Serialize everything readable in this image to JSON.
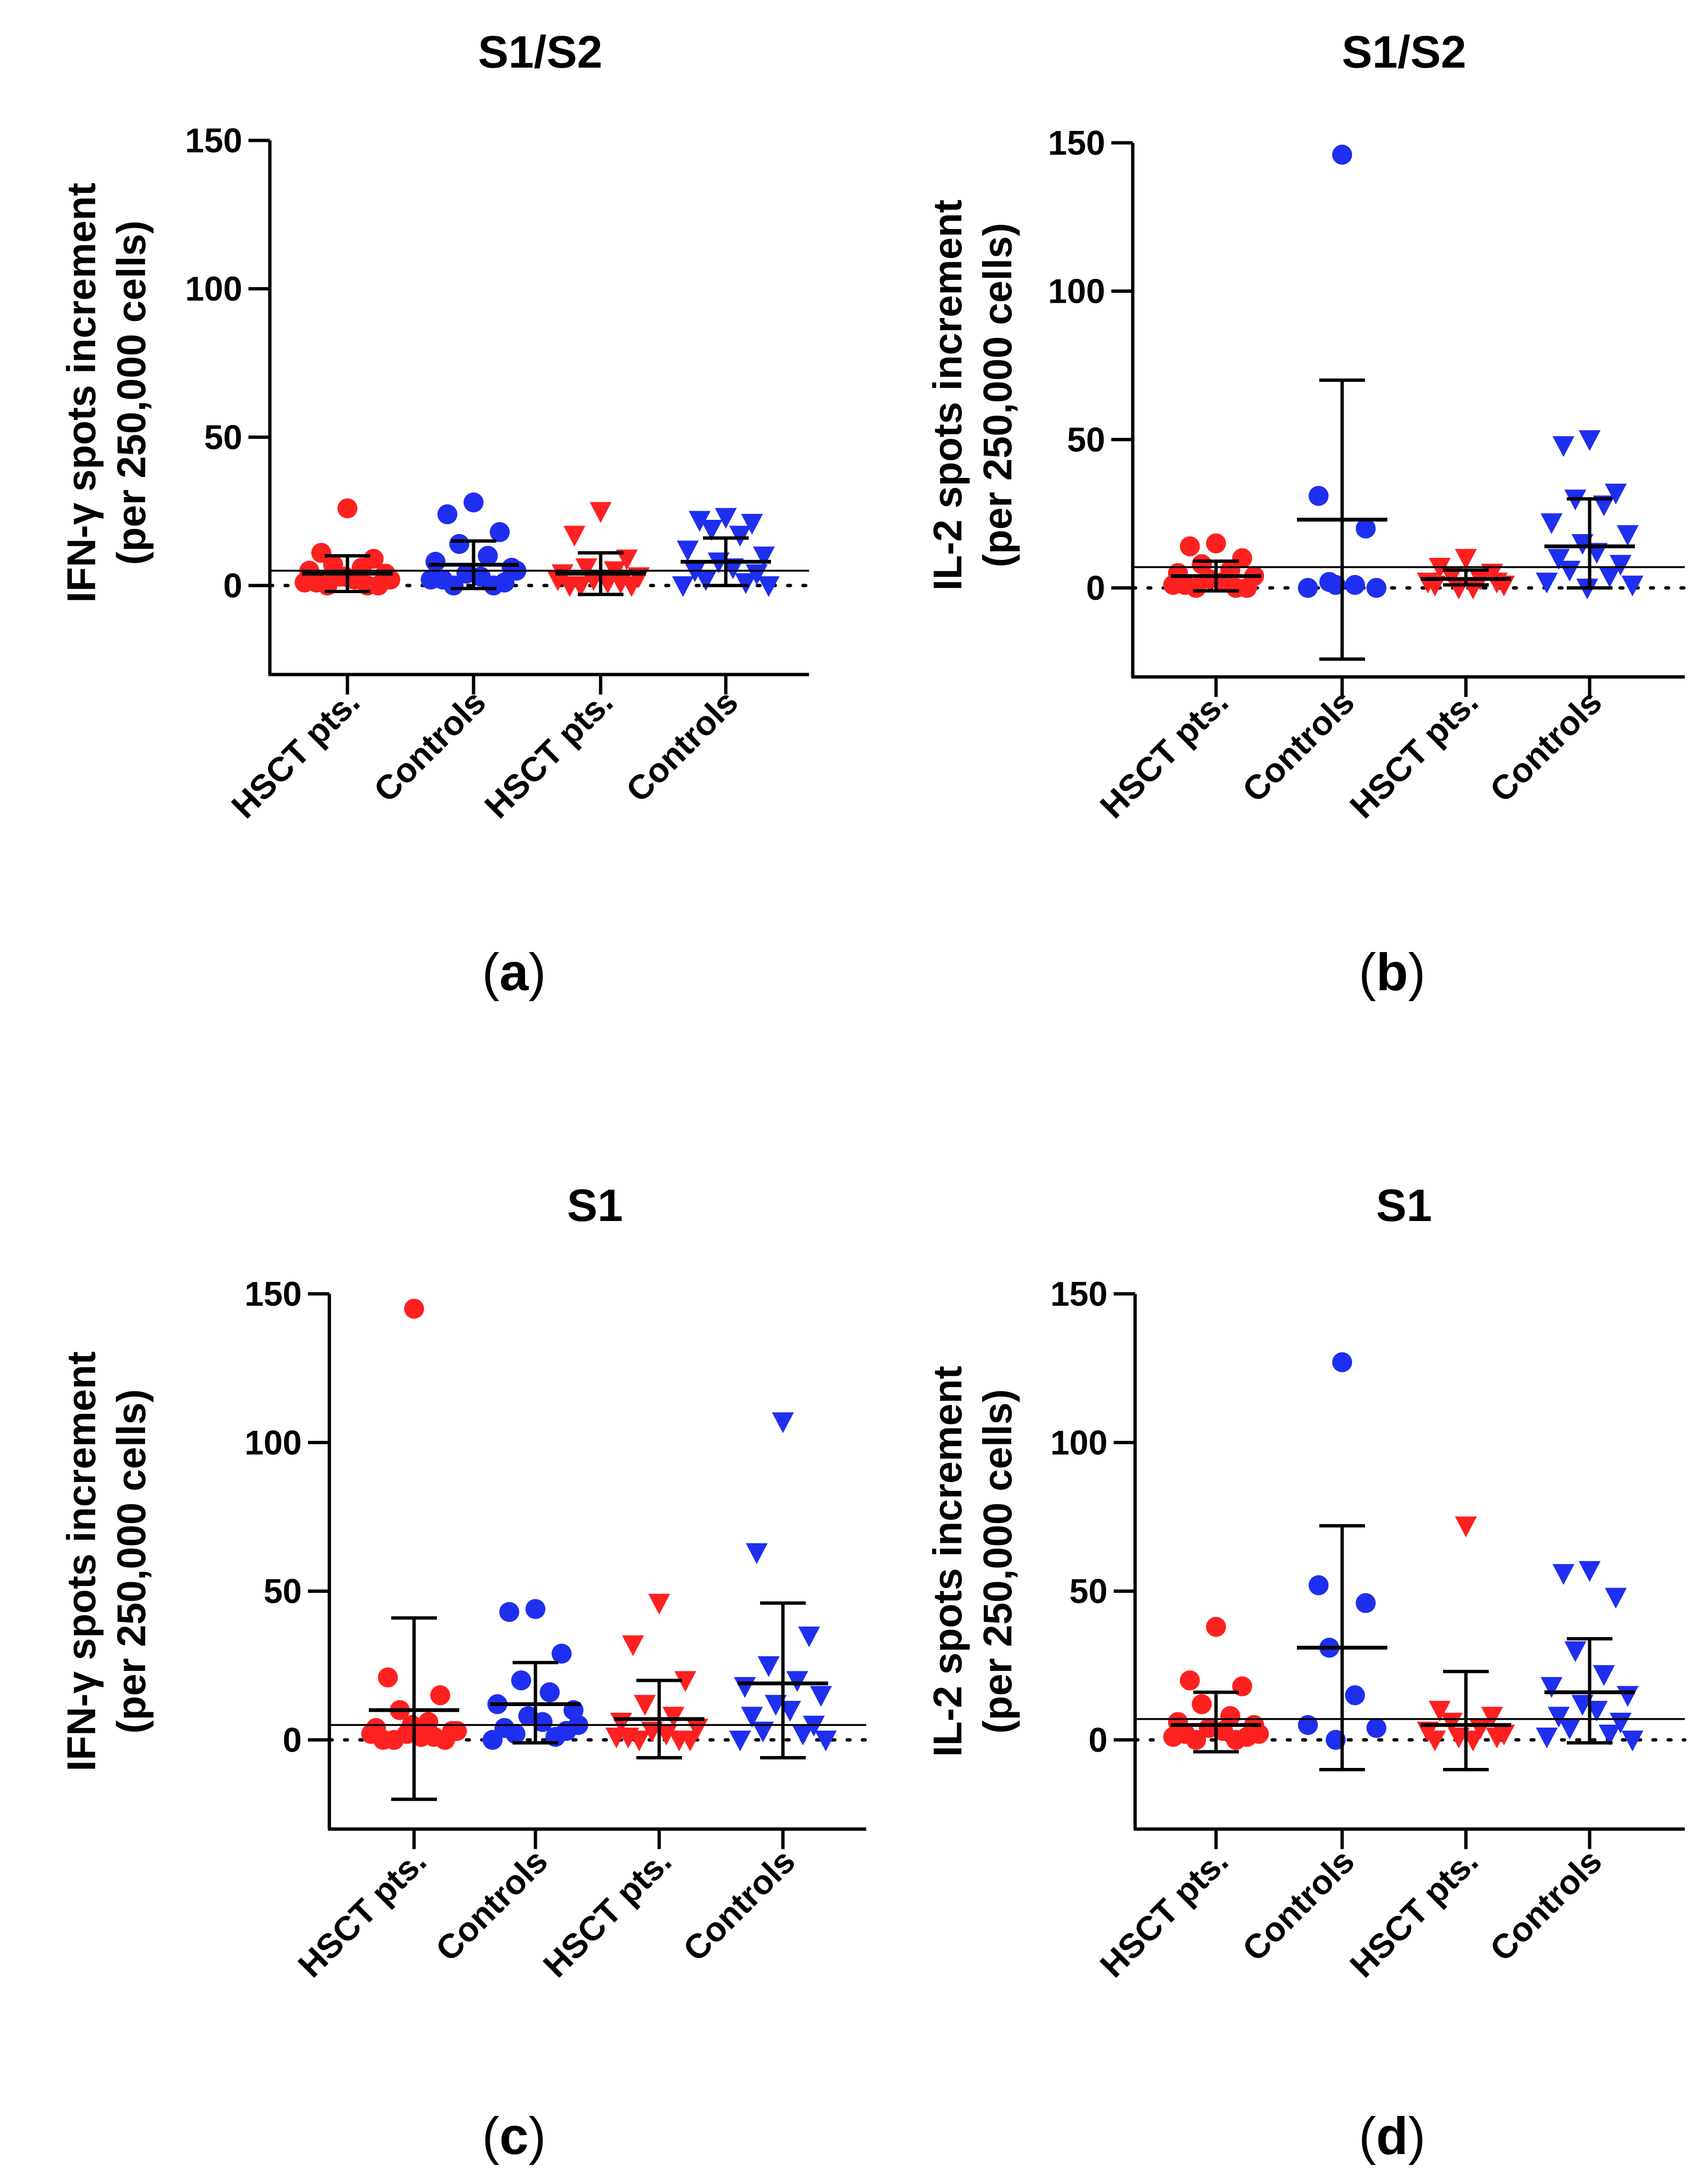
{
  "colors": {
    "hsct": "#ff2020",
    "controls": "#1f2ff0",
    "axis": "#000000"
  },
  "chart_data": [
    {
      "type": "scatter",
      "panel": "(a)",
      "panel_letter": "a",
      "title": "S1/S2",
      "ylabel_line1": "IFN-γ spots increment",
      "ylabel_line2": "(per 250,000 cells)",
      "ylim": [
        -30,
        150
      ],
      "yticks": [
        0,
        50,
        100,
        150
      ],
      "ytick_labels": [
        "0",
        "50",
        "100",
        "150"
      ],
      "categories": [
        "HSCT pts.",
        "Controls",
        "HSCT pts.",
        "Controls"
      ],
      "reference_line": 5,
      "groups": [
        {
          "marker": "circle",
          "color": "hsct",
          "mean": 4,
          "err_low": -2,
          "err_high": 10,
          "values": [
            26,
            11,
            9,
            7,
            6,
            5,
            4,
            3,
            2,
            1,
            0,
            0,
            0,
            1,
            2,
            3
          ]
        },
        {
          "marker": "circle",
          "color": "controls",
          "mean": 7,
          "err_low": -1,
          "err_high": 15,
          "values": [
            28,
            24,
            18,
            14,
            10,
            8,
            6,
            4,
            3,
            2,
            1,
            0,
            0,
            2,
            5
          ]
        },
        {
          "marker": "triangle",
          "color": "hsct",
          "mean": 4,
          "err_low": -3,
          "err_high": 11,
          "values": [
            25,
            17,
            9,
            6,
            5,
            4,
            3,
            2,
            1,
            0,
            0,
            0,
            1,
            2
          ]
        },
        {
          "marker": "triangle",
          "color": "controls",
          "mean": 8,
          "err_low": 0,
          "err_high": 16,
          "values": [
            23,
            22,
            21,
            19,
            17,
            12,
            10,
            8,
            6,
            5,
            4,
            2,
            1,
            0,
            0
          ]
        }
      ]
    },
    {
      "type": "scatter",
      "panel": "(b)",
      "panel_letter": "b",
      "title": "S1/S2",
      "ylabel_line1": "IL-2 spots increment",
      "ylabel_line2": "(per 250,000 cells)",
      "ylim": [
        -30,
        150
      ],
      "yticks": [
        0,
        50,
        100,
        150
      ],
      "ytick_labels": [
        "0",
        "50",
        "100",
        "150"
      ],
      "categories": [
        "HSCT pts.",
        "Controls",
        "HSCT pts.",
        "Controls"
      ],
      "reference_line": 7,
      "groups": [
        {
          "marker": "circle",
          "color": "hsct",
          "mean": 4,
          "err_low": -1,
          "err_high": 9,
          "values": [
            15,
            14,
            10,
            8,
            6,
            5,
            4,
            3,
            2,
            1,
            0,
            0,
            0,
            1
          ]
        },
        {
          "marker": "circle",
          "color": "controls",
          "mean": 23,
          "err_low": -24,
          "err_high": 70,
          "values": [
            146,
            31,
            20,
            2,
            1,
            0,
            0,
            1
          ]
        },
        {
          "marker": "triangle",
          "color": "hsct",
          "mean": 3,
          "err_low": 1,
          "err_high": 6,
          "values": [
            10,
            7,
            5,
            4,
            3,
            2,
            1,
            0,
            0,
            1,
            2
          ]
        },
        {
          "marker": "triangle",
          "color": "controls",
          "mean": 14,
          "err_low": 0,
          "err_high": 30,
          "values": [
            50,
            48,
            32,
            30,
            28,
            22,
            18,
            15,
            12,
            10,
            8,
            6,
            4,
            2,
            1,
            0
          ]
        }
      ]
    },
    {
      "type": "scatter",
      "panel": "(c)",
      "panel_letter": "c",
      "title": "S1",
      "ylabel_line1": "IFN-γ spots increment",
      "ylabel_line2": "(per 250,000 cells)",
      "ylim": [
        -30,
        150
      ],
      "yticks": [
        0,
        50,
        100,
        150
      ],
      "ytick_labels": [
        "0",
        "50",
        "100",
        "150"
      ],
      "categories": [
        "HSCT pts.",
        "Controls",
        "HSCT pts.",
        "Controls"
      ],
      "reference_line": 5,
      "groups": [
        {
          "marker": "circle",
          "color": "hsct",
          "mean": 10,
          "err_low": -20,
          "err_high": 41,
          "values": [
            145,
            21,
            15,
            10,
            6,
            4,
            3,
            2,
            1,
            0,
            0,
            0,
            1,
            2,
            3,
            5
          ]
        },
        {
          "marker": "circle",
          "color": "controls",
          "mean": 12,
          "err_low": -1,
          "err_high": 26,
          "values": [
            44,
            43,
            29,
            20,
            16,
            12,
            10,
            8,
            6,
            4,
            3,
            2,
            1,
            0,
            5
          ]
        },
        {
          "marker": "triangle",
          "color": "hsct",
          "mean": 7,
          "err_low": -6,
          "err_high": 20,
          "values": [
            46,
            32,
            20,
            12,
            8,
            6,
            4,
            3,
            2,
            1,
            0,
            0,
            0,
            1
          ]
        },
        {
          "marker": "triangle",
          "color": "controls",
          "mean": 19,
          "err_low": -6,
          "err_high": 46,
          "values": [
            107,
            63,
            35,
            25,
            20,
            18,
            15,
            12,
            10,
            8,
            5,
            3,
            2,
            0,
            0
          ]
        }
      ]
    },
    {
      "type": "scatter",
      "panel": "(d)",
      "panel_letter": "d",
      "title": "S1",
      "ylabel_line1": "IL-2 spots increment",
      "ylabel_line2": "(per 250,000 cells)",
      "ylim": [
        -30,
        150
      ],
      "yticks": [
        0,
        50,
        100,
        150
      ],
      "ytick_labels": [
        "0",
        "50",
        "100",
        "150"
      ],
      "categories": [
        "HSCT pts.",
        "Controls",
        "HSCT pts.",
        "Controls"
      ],
      "reference_line": 7,
      "groups": [
        {
          "marker": "circle",
          "color": "hsct",
          "mean": 5,
          "err_low": -4,
          "err_high": 16,
          "values": [
            38,
            20,
            18,
            12,
            8,
            6,
            5,
            4,
            3,
            2,
            1,
            0,
            0,
            1,
            2
          ]
        },
        {
          "marker": "circle",
          "color": "controls",
          "mean": 31,
          "err_low": -10,
          "err_high": 72,
          "values": [
            127,
            52,
            46,
            31,
            15,
            5,
            4,
            0
          ]
        },
        {
          "marker": "triangle",
          "color": "hsct",
          "mean": 5,
          "err_low": -10,
          "err_high": 23,
          "values": [
            72,
            10,
            8,
            6,
            4,
            3,
            2,
            1,
            0,
            0,
            1
          ]
        },
        {
          "marker": "triangle",
          "color": "controls",
          "mean": 16,
          "err_low": -1,
          "err_high": 34,
          "values": [
            57,
            56,
            48,
            30,
            22,
            18,
            15,
            12,
            10,
            8,
            6,
            4,
            2,
            1,
            0
          ]
        }
      ]
    }
  ]
}
